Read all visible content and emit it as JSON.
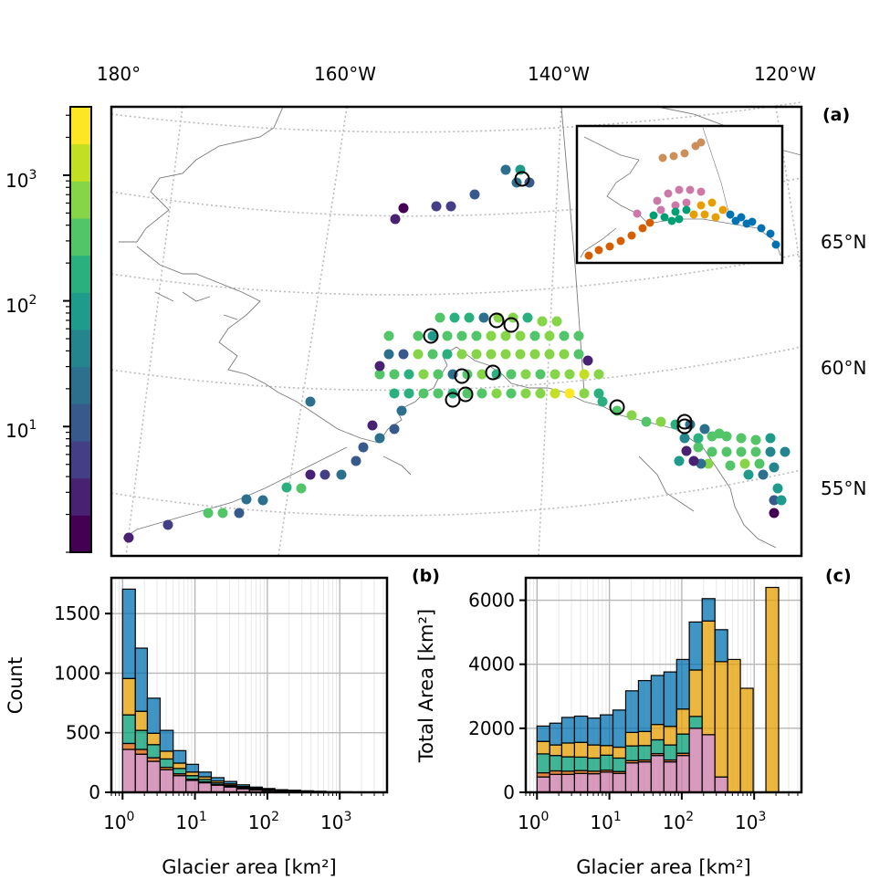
{
  "panel_labels": {
    "a": "(a)",
    "b": "(b)",
    "c": "(c)"
  },
  "colors": {
    "regions": {
      "magenta": "#cc79a7",
      "orange": "#e69f00",
      "vermillion": "#d55e00",
      "teal": "#009e73",
      "blue": "#0072b2",
      "tan": "#cc8f5a"
    },
    "viridis_bins": [
      "#440154",
      "#482173",
      "#433e85",
      "#38598c",
      "#2d708e",
      "#25858e",
      "#1e9b8a",
      "#2ab07f",
      "#52c569",
      "#86d549",
      "#c2df23",
      "#fde725"
    ]
  },
  "chart_data": [
    {
      "type": "scatter",
      "panel": "(a)",
      "map": true,
      "lon_labels": [
        "180°",
        "160°W",
        "140°W",
        "120°W"
      ],
      "lat_labels": [
        "65°N",
        "60°N",
        "55°N"
      ],
      "colorbar": {
        "scale": "log",
        "range": [
          1,
          3500
        ],
        "tick_labels": [
          "10^1",
          "10^2",
          "10^3"
        ],
        "tick_values": [
          10,
          100,
          1000
        ],
        "bins": 12
      },
      "note": "Hexagon-gridded glacier area points; circles mark largest glaciers"
    },
    {
      "type": "bar",
      "panel": "(b)",
      "stacked": true,
      "xscale": "log",
      "xlabel": "Glacier area [km²]",
      "ylabel": "Count",
      "xlim": [
        0.7,
        4500
      ],
      "ylim": [
        0,
        1800
      ],
      "yticks": [
        0,
        500,
        1000,
        1500
      ],
      "xtick_labels": [
        "10^0",
        "10^1",
        "10^2",
        "10^3"
      ],
      "bin_edges": [
        1.0,
        1.5,
        2.2,
        3.3,
        5.0,
        7.5,
        11.2,
        16.8,
        25.2,
        37.8,
        56.7,
        85,
        127,
        191,
        287,
        430,
        645,
        968,
        1452,
        2178,
        3267
      ],
      "series": [
        {
          "color": "#cc79a7",
          "values": [
            360,
            320,
            260,
            190,
            140,
            100,
            80,
            60,
            45,
            30,
            20,
            15,
            10,
            8,
            6,
            4,
            3,
            2,
            1,
            0
          ]
        },
        {
          "color": "#d55e00",
          "values": [
            50,
            40,
            30,
            20,
            15,
            10,
            8,
            5,
            4,
            3,
            2,
            2,
            1,
            1,
            1,
            0,
            0,
            0,
            0,
            0
          ]
        },
        {
          "color": "#009e73",
          "values": [
            240,
            160,
            110,
            70,
            45,
            30,
            20,
            14,
            10,
            7,
            5,
            3,
            2,
            2,
            1,
            1,
            0,
            0,
            0,
            0
          ]
        },
        {
          "color": "#e69f00",
          "values": [
            305,
            160,
            95,
            65,
            45,
            30,
            22,
            16,
            12,
            9,
            7,
            5,
            4,
            3,
            2,
            2,
            1,
            1,
            1,
            1
          ]
        },
        {
          "color": "#0072b2",
          "values": [
            750,
            530,
            295,
            175,
            105,
            65,
            40,
            28,
            20,
            14,
            10,
            7,
            5,
            4,
            3,
            2,
            1,
            1,
            0,
            0
          ]
        }
      ]
    },
    {
      "type": "bar",
      "panel": "(c)",
      "stacked": true,
      "xscale": "log",
      "xlabel": "Glacier area [km²]",
      "ylabel": "Total Area [km²]",
      "xlim": [
        0.7,
        4500
      ],
      "ylim": [
        0,
        6700
      ],
      "yticks": [
        0,
        2000,
        4000,
        6000
      ],
      "xtick_labels": [
        "10^0",
        "10^1",
        "10^2",
        "10^3"
      ],
      "bin_edges": [
        1.0,
        1.5,
        2.2,
        3.3,
        5.0,
        7.5,
        11.2,
        16.8,
        25.2,
        37.8,
        56.7,
        85,
        127,
        191,
        287,
        430,
        645,
        968,
        1452,
        2178,
        3267
      ],
      "series": [
        {
          "color": "#cc79a7",
          "values": [
            480,
            560,
            560,
            590,
            580,
            630,
            590,
            920,
            950,
            1150,
            950,
            1150,
            2000,
            1800,
            480,
            0,
            0,
            0,
            0,
            0
          ]
        },
        {
          "color": "#d55e00",
          "values": [
            130,
            110,
            100,
            90,
            80,
            60,
            60,
            70,
            60,
            60,
            60,
            70,
            0,
            0,
            0,
            0,
            0,
            0,
            0,
            0
          ]
        },
        {
          "color": "#009e73",
          "values": [
            590,
            480,
            450,
            420,
            410,
            470,
            420,
            460,
            450,
            430,
            470,
            600,
            370,
            0,
            0,
            0,
            0,
            0,
            0,
            0
          ]
        },
        {
          "color": "#e69f00",
          "values": [
            390,
            330,
            430,
            460,
            410,
            300,
            340,
            420,
            440,
            480,
            580,
            780,
            1450,
            3550,
            3600,
            4150,
            3250,
            0,
            6400,
            0
          ]
        },
        {
          "color": "#0072b2",
          "values": [
            480,
            680,
            800,
            820,
            840,
            960,
            1160,
            1300,
            1590,
            1530,
            1700,
            1550,
            1500,
            700,
            1000,
            0,
            0,
            0,
            0,
            0
          ]
        }
      ]
    }
  ]
}
